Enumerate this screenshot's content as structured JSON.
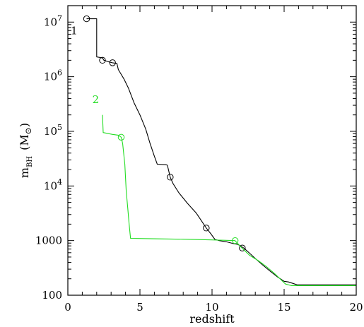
{
  "chart_data": {
    "type": "line",
    "title": "",
    "xlabel": "redshift",
    "ylabel": {
      "main": "m",
      "sub": "BH",
      "units_prefix": "(M",
      "units_symbol": "⊙",
      "units_suffix": ")"
    },
    "xlim": [
      0,
      20
    ],
    "ylim": [
      100,
      20000000
    ],
    "yscale": "log",
    "grid": false,
    "x_ticks": [
      {
        "value": 0,
        "label": "0"
      },
      {
        "value": 5,
        "label": "5"
      },
      {
        "value": 10,
        "label": "10"
      },
      {
        "value": 15,
        "label": "15"
      },
      {
        "value": 20,
        "label": "20"
      }
    ],
    "y_ticks": [
      {
        "value": 100,
        "base": "100",
        "exp": ""
      },
      {
        "value": 1000,
        "base": "1000",
        "exp": ""
      },
      {
        "value": 10000,
        "base": "10",
        "exp": "4"
      },
      {
        "value": 100000,
        "base": "10",
        "exp": "5"
      },
      {
        "value": 1000000,
        "base": "10",
        "exp": "6"
      },
      {
        "value": 10000000,
        "base": "10",
        "exp": "7"
      }
    ],
    "series": [
      {
        "name": "1",
        "color": "#000000",
        "label_position": [
          0.2,
          6000000
        ],
        "points": [
          [
            1.3,
            11500000
          ],
          [
            2.0,
            11500000
          ],
          [
            2.0,
            2300000
          ],
          [
            2.4,
            2200000
          ],
          [
            2.5,
            2000000
          ],
          [
            2.9,
            1850000
          ],
          [
            3.1,
            1800000
          ],
          [
            3.4,
            1750000
          ],
          [
            3.5,
            1350000
          ],
          [
            3.9,
            900000
          ],
          [
            4.2,
            620000
          ],
          [
            4.6,
            330000
          ],
          [
            5.0,
            200000
          ],
          [
            5.4,
            110000
          ],
          [
            5.7,
            60000
          ],
          [
            6.0,
            35000
          ],
          [
            6.2,
            25000
          ],
          [
            6.8,
            24500
          ],
          [
            6.9,
            24000
          ],
          [
            7.1,
            14500
          ],
          [
            7.3,
            11000
          ],
          [
            7.7,
            7500
          ],
          [
            8.0,
            6000
          ],
          [
            8.3,
            4800
          ],
          [
            8.9,
            3200
          ],
          [
            9.6,
            1700
          ],
          [
            9.9,
            1350
          ],
          [
            10.2,
            1050
          ],
          [
            10.5,
            1000
          ],
          [
            11.0,
            950
          ],
          [
            11.5,
            880
          ],
          [
            11.8,
            850
          ],
          [
            12.2,
            730
          ],
          [
            12.6,
            590
          ],
          [
            13.0,
            470
          ],
          [
            13.5,
            360
          ],
          [
            14.0,
            280
          ],
          [
            14.5,
            220
          ],
          [
            15.0,
            180
          ],
          [
            15.3,
            175
          ],
          [
            15.6,
            165
          ],
          [
            15.9,
            155
          ],
          [
            20.0,
            155
          ]
        ],
        "markers": [
          [
            1.3,
            11500000
          ],
          [
            2.4,
            2000000
          ],
          [
            3.1,
            1800000
          ],
          [
            7.1,
            14500
          ],
          [
            9.6,
            1700
          ],
          [
            12.1,
            730
          ]
        ]
      },
      {
        "name": "2",
        "color": "#22dd22",
        "label_position": [
          1.7,
          330000
        ],
        "points": [
          [
            2.4,
            200000
          ],
          [
            2.45,
            95000
          ],
          [
            3.1,
            88000
          ],
          [
            3.5,
            85000
          ],
          [
            3.7,
            78000
          ],
          [
            3.8,
            60000
          ],
          [
            3.95,
            25000
          ],
          [
            4.05,
            8000
          ],
          [
            4.15,
            4000
          ],
          [
            4.25,
            2000
          ],
          [
            4.35,
            1100
          ],
          [
            6.0,
            1080
          ],
          [
            8.0,
            1060
          ],
          [
            10.0,
            1030
          ],
          [
            11.0,
            1010
          ],
          [
            11.6,
            1000
          ],
          [
            12.1,
            720
          ],
          [
            12.6,
            540
          ],
          [
            13.2,
            430
          ],
          [
            13.8,
            330
          ],
          [
            14.4,
            240
          ],
          [
            14.8,
            190
          ],
          [
            15.1,
            160
          ],
          [
            15.5,
            150
          ],
          [
            20.0,
            150
          ]
        ],
        "markers": [
          [
            3.7,
            78000
          ],
          [
            11.6,
            1000
          ]
        ]
      }
    ]
  }
}
